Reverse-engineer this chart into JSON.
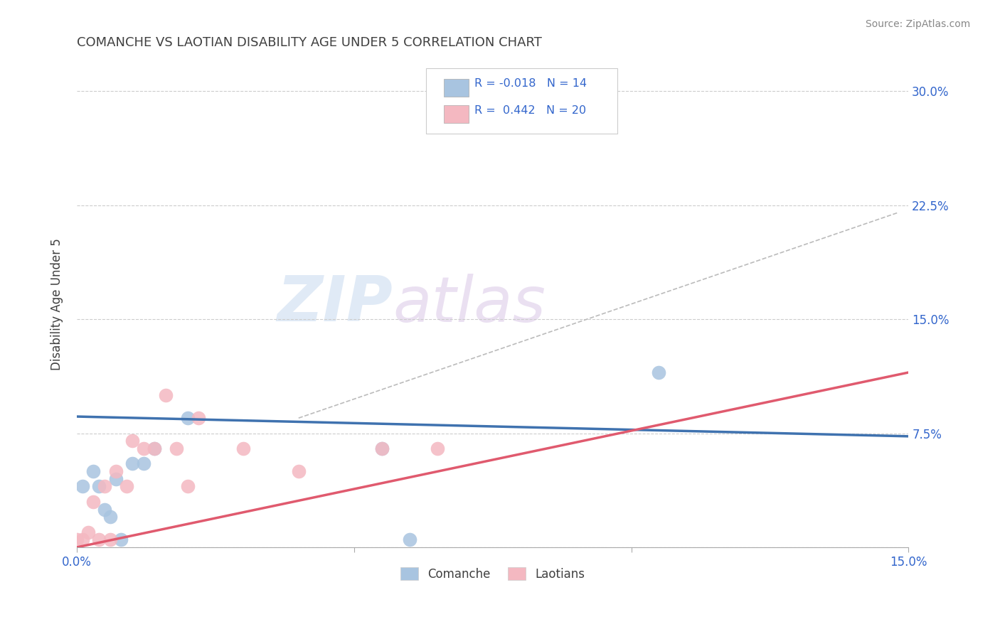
{
  "title": "COMANCHE VS LAOTIAN DISABILITY AGE UNDER 5 CORRELATION CHART",
  "source": "Source: ZipAtlas.com",
  "ylabel": "Disability Age Under 5",
  "xlim": [
    0.0,
    0.15
  ],
  "ylim": [
    0.0,
    0.32
  ],
  "yticks": [
    0.0,
    0.075,
    0.15,
    0.225,
    0.3
  ],
  "background_color": "#ffffff",
  "grid_color": "#cccccc",
  "comanche_R": -0.018,
  "comanche_N": 14,
  "laotian_R": 0.442,
  "laotian_N": 20,
  "comanche_color": "#a8c4e0",
  "comanche_line_color": "#3f72af",
  "laotian_color": "#f4b8c1",
  "laotian_line_color": "#e05a6e",
  "comanche_x": [
    0.001,
    0.003,
    0.004,
    0.005,
    0.006,
    0.007,
    0.008,
    0.01,
    0.012,
    0.014,
    0.02,
    0.055,
    0.06,
    0.105
  ],
  "comanche_y": [
    0.04,
    0.05,
    0.04,
    0.025,
    0.02,
    0.045,
    0.005,
    0.055,
    0.055,
    0.065,
    0.085,
    0.065,
    0.005,
    0.115
  ],
  "laotian_x": [
    0.0,
    0.001,
    0.002,
    0.003,
    0.004,
    0.005,
    0.006,
    0.007,
    0.009,
    0.01,
    0.012,
    0.014,
    0.016,
    0.018,
    0.02,
    0.022,
    0.03,
    0.04,
    0.055,
    0.065
  ],
  "laotian_y": [
    0.005,
    0.005,
    0.01,
    0.03,
    0.005,
    0.04,
    0.005,
    0.05,
    0.04,
    0.07,
    0.065,
    0.065,
    0.1,
    0.065,
    0.04,
    0.085,
    0.065,
    0.05,
    0.065,
    0.065
  ],
  "comanche_line_x": [
    0.0,
    0.15
  ],
  "comanche_line_y": [
    0.086,
    0.073
  ],
  "laotian_line_x": [
    0.0,
    0.15
  ],
  "laotian_line_y": [
    0.0,
    0.115
  ],
  "dash_line_x": [
    0.04,
    0.148
  ],
  "dash_line_y": [
    0.085,
    0.22
  ],
  "legend_R_color": "#3366cc",
  "title_color": "#404040",
  "axis_label_color": "#404040",
  "tick_label_color": "#3366cc"
}
